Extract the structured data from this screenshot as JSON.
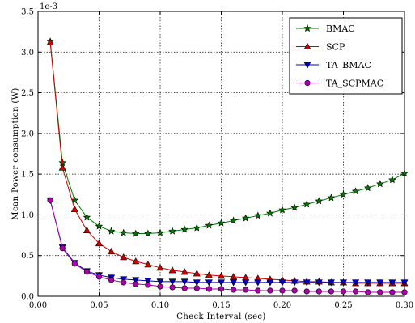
{
  "chart_data": {
    "type": "line",
    "xlabel": "Check Interval (sec)",
    "ylabel": "Mean Power consumption (W)",
    "y_multiplier": "1e-3",
    "xlim": [
      0.0,
      0.3
    ],
    "ylim": [
      0.0,
      3.5
    ],
    "xticks": [
      "0.00",
      "0.05",
      "0.10",
      "0.15",
      "0.20",
      "0.25",
      "0.30"
    ],
    "yticks": [
      "0.0",
      "0.5",
      "1.0",
      "1.5",
      "2.0",
      "2.5",
      "3.0",
      "3.5"
    ],
    "grid": true,
    "legend_position": "top-right",
    "x": [
      0.01,
      0.02,
      0.03,
      0.04,
      0.05,
      0.06,
      0.07,
      0.08,
      0.09,
      0.1,
      0.11,
      0.12,
      0.13,
      0.14,
      0.15,
      0.16,
      0.17,
      0.18,
      0.19,
      0.2,
      0.21,
      0.22,
      0.23,
      0.24,
      0.25,
      0.26,
      0.27,
      0.28,
      0.29,
      0.3
    ],
    "series": [
      {
        "name": "BMAC",
        "color": "#007a00",
        "marker": "star",
        "values": [
          3.13,
          1.64,
          1.18,
          0.97,
          0.86,
          0.8,
          0.78,
          0.77,
          0.77,
          0.78,
          0.8,
          0.82,
          0.84,
          0.87,
          0.9,
          0.93,
          0.96,
          0.99,
          1.02,
          1.06,
          1.09,
          1.13,
          1.17,
          1.21,
          1.25,
          1.29,
          1.33,
          1.38,
          1.43,
          1.51
        ]
      },
      {
        "name": "SCP",
        "color": "#cc0000",
        "marker": "triangle-up",
        "values": [
          3.12,
          1.58,
          1.07,
          0.81,
          0.65,
          0.55,
          0.48,
          0.43,
          0.39,
          0.35,
          0.32,
          0.3,
          0.28,
          0.26,
          0.25,
          0.24,
          0.23,
          0.22,
          0.21,
          0.2,
          0.19,
          0.18,
          0.18,
          0.17,
          0.17,
          0.16,
          0.16,
          0.16,
          0.16,
          0.16
        ]
      },
      {
        "name": "TA_BMAC",
        "color": "#0000bb",
        "marker": "triangle-down",
        "values": [
          1.18,
          0.6,
          0.41,
          0.31,
          0.26,
          0.23,
          0.21,
          0.2,
          0.19,
          0.18,
          0.18,
          0.18,
          0.17,
          0.17,
          0.17,
          0.17,
          0.17,
          0.17,
          0.17,
          0.17,
          0.17,
          0.17,
          0.17,
          0.17,
          0.17,
          0.17,
          0.17,
          0.17,
          0.17,
          0.17
        ]
      },
      {
        "name": "TA_SCPMAC",
        "color": "#aa00aa",
        "marker": "circle",
        "values": [
          1.18,
          0.59,
          0.4,
          0.3,
          0.24,
          0.2,
          0.17,
          0.15,
          0.14,
          0.12,
          0.11,
          0.1,
          0.1,
          0.09,
          0.09,
          0.08,
          0.08,
          0.07,
          0.07,
          0.07,
          0.07,
          0.06,
          0.06,
          0.06,
          0.06,
          0.06,
          0.05,
          0.05,
          0.05,
          0.05
        ]
      }
    ]
  }
}
